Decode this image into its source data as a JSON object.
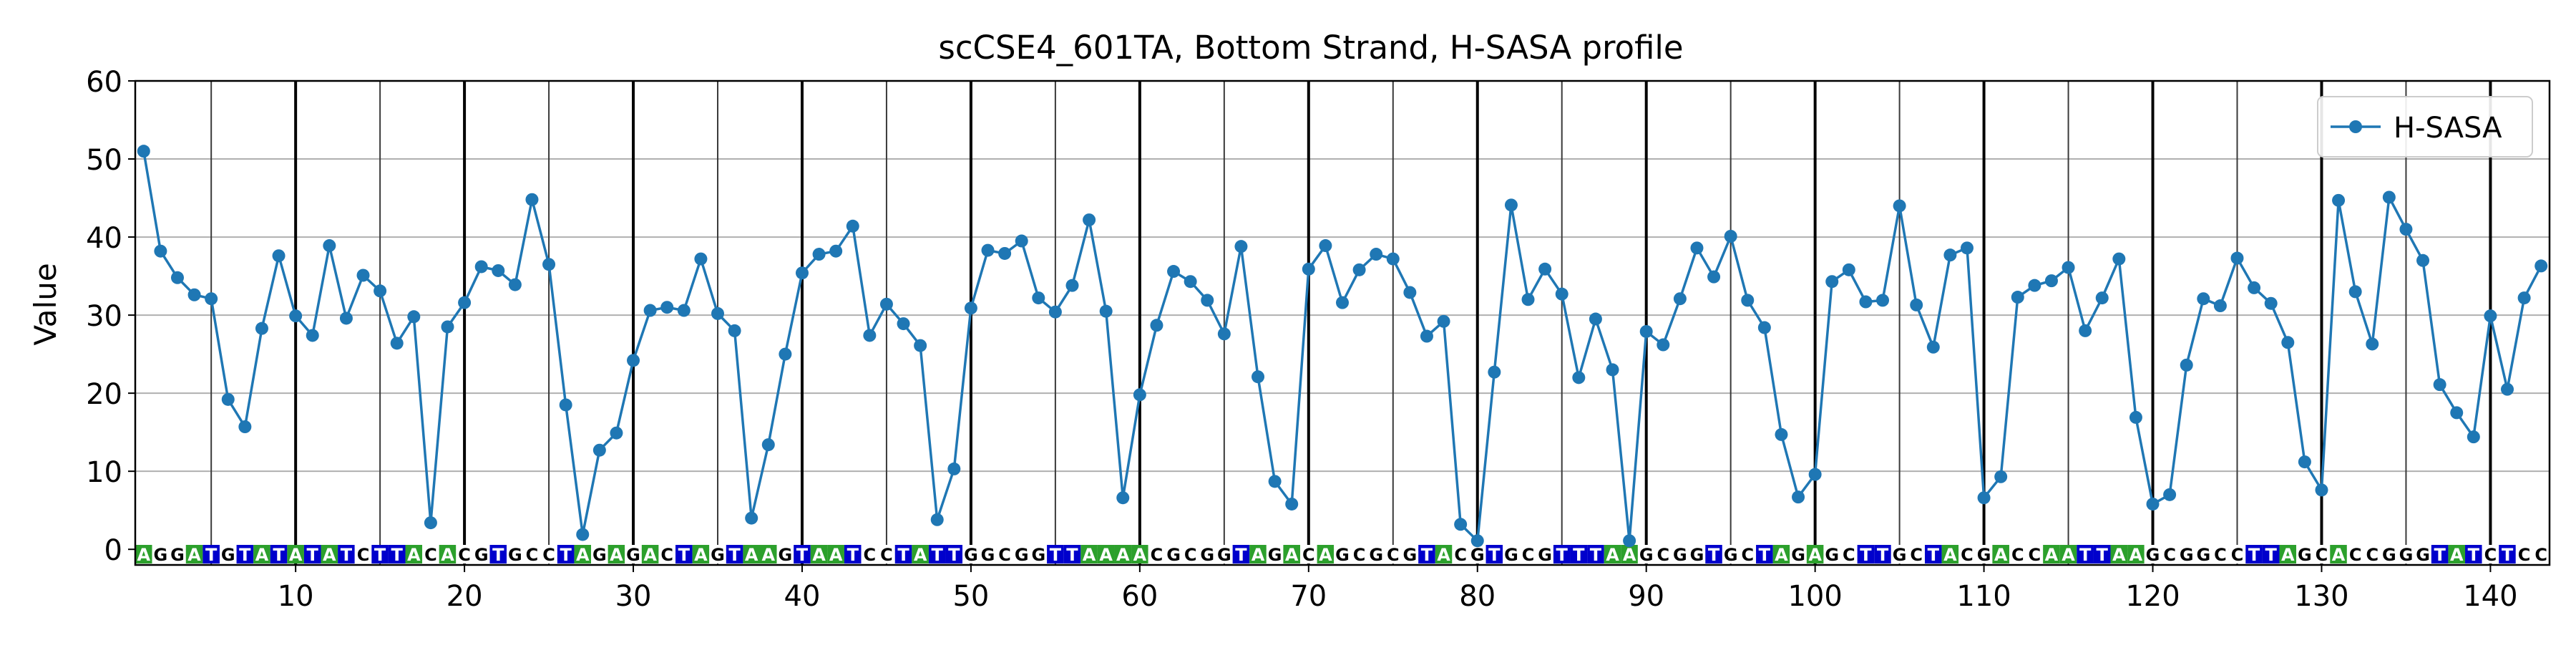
{
  "chart_data": {
    "type": "line",
    "title": "scCSE4_601TA, Bottom Strand, H-SASA profile",
    "xlabel": "",
    "ylabel": "Value",
    "xlim": [
      0.5,
      143.5
    ],
    "ylim": [
      -2,
      60
    ],
    "yticks": [
      0,
      10,
      20,
      30,
      40,
      50,
      60
    ],
    "xticks": [
      10,
      20,
      30,
      40,
      50,
      60,
      70,
      80,
      90,
      100,
      110,
      120,
      130,
      140
    ],
    "grid": true,
    "legend_position": "top-right",
    "series": [
      {
        "name": "H-SASA",
        "color": "#1f77b4",
        "x": [
          1,
          2,
          3,
          4,
          5,
          6,
          7,
          8,
          9,
          10,
          11,
          12,
          13,
          14,
          15,
          16,
          17,
          18,
          19,
          20,
          21,
          22,
          23,
          24,
          25,
          26,
          27,
          28,
          29,
          30,
          31,
          32,
          33,
          34,
          35,
          36,
          37,
          38,
          39,
          40,
          41,
          42,
          43,
          44,
          45,
          46,
          47,
          48,
          49,
          50,
          51,
          52,
          53,
          54,
          55,
          56,
          57,
          58,
          59,
          60,
          61,
          62,
          63,
          64,
          65,
          66,
          67,
          68,
          69,
          70,
          71,
          72,
          73,
          74,
          75,
          76,
          77,
          78,
          79,
          80,
          81,
          82,
          83,
          84,
          85,
          86,
          87,
          88,
          89,
          90,
          91,
          92,
          93,
          94,
          95,
          96,
          97,
          98,
          99,
          100,
          101,
          102,
          103,
          104,
          105,
          106,
          107,
          108,
          109,
          110,
          111,
          112,
          113,
          114,
          115,
          116,
          117,
          118,
          119,
          120,
          121,
          122,
          123,
          124,
          125,
          126,
          127,
          128,
          129,
          130,
          131,
          132,
          133,
          134,
          135,
          136,
          137,
          138,
          139,
          140,
          141,
          142,
          143
        ],
        "values": [
          51.0,
          38.2,
          34.8,
          32.6,
          32.1,
          19.2,
          15.7,
          28.3,
          37.6,
          29.9,
          27.4,
          38.9,
          29.6,
          35.1,
          33.1,
          26.4,
          29.8,
          3.4,
          28.5,
          31.6,
          36.2,
          35.7,
          33.9,
          44.8,
          36.5,
          18.5,
          1.9,
          12.7,
          14.9,
          24.2,
          30.6,
          31.0,
          30.6,
          37.2,
          30.2,
          28.0,
          4.0,
          13.4,
          25.0,
          35.4,
          37.8,
          38.2,
          41.4,
          27.4,
          31.4,
          28.9,
          26.1,
          3.8,
          10.3,
          30.9,
          38.3,
          37.9,
          39.5,
          32.2,
          30.4,
          33.8,
          42.2,
          30.5,
          6.6,
          19.8,
          28.7,
          35.6,
          34.3,
          31.9,
          27.6,
          38.8,
          22.1,
          8.7,
          5.8,
          35.9,
          38.9,
          31.6,
          35.8,
          37.8,
          37.2,
          32.9,
          27.3,
          29.2,
          3.2,
          1.1,
          22.7,
          44.1,
          32.0,
          35.9,
          32.7,
          22.0,
          29.5,
          23.0,
          1.1,
          27.9,
          26.2,
          32.1,
          38.6,
          34.9,
          40.1,
          31.9,
          28.4,
          14.7,
          6.7,
          9.6,
          34.3,
          35.8,
          31.7,
          31.9,
          44.0,
          31.3,
          25.9,
          37.7,
          38.6,
          6.6,
          9.3,
          32.3,
          33.8,
          34.4,
          36.1,
          28.0,
          32.2,
          37.2,
          16.9,
          5.8,
          7.0,
          23.6,
          32.1,
          31.2,
          37.3,
          33.5,
          31.5,
          26.5,
          11.2,
          7.6,
          44.7,
          33.0,
          26.3,
          45.1,
          41.0,
          37.0,
          21.1,
          17.5,
          14.4,
          29.9,
          20.5,
          32.2,
          36.3
        ]
      }
    ],
    "sequence": "AGGATGTATATATCTTACACGTGCCTAGAGACTAGTAAGTAATCCTATTGGCGGTTAAAACGCGGTAGACAGCGCGTACGTGCGTTTAAGCGGTGCTAGAGCTTGCTACGACCAATTAAGCGGCCTTAGCACCGGGTATCTCC",
    "base_colors": {
      "A": "#2ca02c",
      "T": "#0000cc",
      "G": "#ffffff",
      "C": "#ffffff"
    }
  }
}
